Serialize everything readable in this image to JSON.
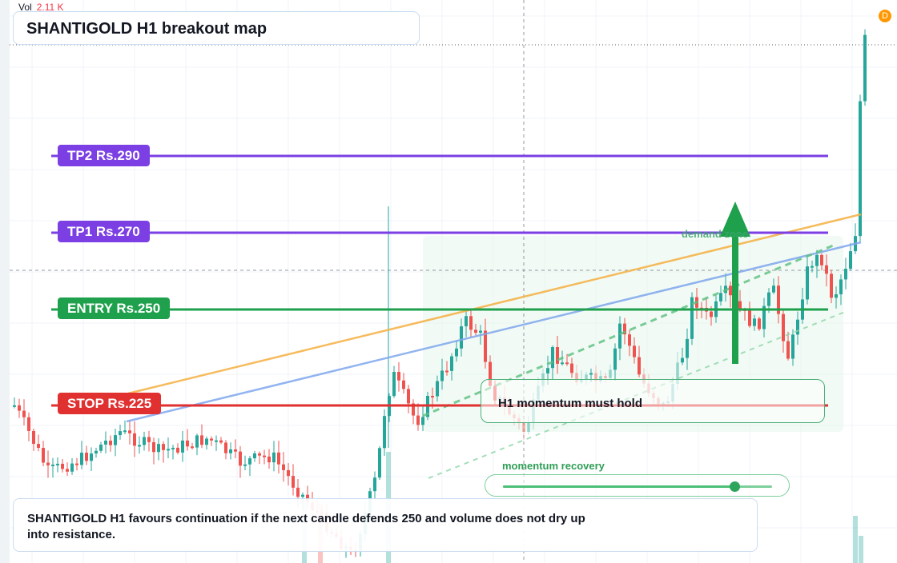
{
  "header": {
    "vol_label": "Vol",
    "vol_value": "2.11 K",
    "badge": "D"
  },
  "title": "SHANTIGOLD H1 breakout map",
  "levels": {
    "tp2": {
      "label": "TP2 Rs.290",
      "price": 290,
      "color": "#7b3fe4"
    },
    "tp1": {
      "label": "TP1 Rs.270",
      "price": 270,
      "color": "#7b3fe4"
    },
    "entry": {
      "label": "ENTRY Rs.250",
      "price": 250,
      "color": "#1ea04c"
    },
    "stop": {
      "label": "STOP Rs.225",
      "price": 225,
      "color": "#e03030"
    }
  },
  "zone_label": "demand zone",
  "hold_note": "H1 momentum must hold",
  "momentum": {
    "label": "momentum recovery",
    "value": 0.86
  },
  "note": "SHANTIGOLD H1 favours continuation if the next candle defends 250 and volume does not dry up into resistance.",
  "colors": {
    "up": "#26a69a",
    "down": "#ef5350",
    "ma_fast": "#f5b041",
    "ma_slow": "#7fa7ee"
  }
}
